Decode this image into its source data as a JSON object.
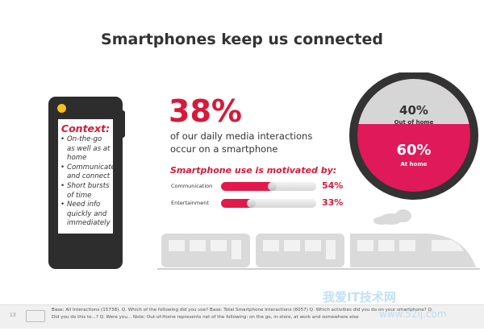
{
  "title": "Smartphones keep us connected",
  "context": {
    "title": "Context:",
    "items": [
      "On-the-go as well as at home",
      "Communicate and connect",
      "Short bursts of time",
      "Need info quickly and immediately"
    ]
  },
  "headline": {
    "value": "38%",
    "line1": "of our daily media interactions",
    "line2": "occur on a smartphone"
  },
  "motivation": {
    "title": "Smartphone use is motivated by:",
    "bars": [
      {
        "label": "Communication",
        "value": "54%",
        "percent": 54
      },
      {
        "label": "Entertainment",
        "value": "33%",
        "percent": 33
      }
    ]
  },
  "location": {
    "out": {
      "value": "40%",
      "label": "Out of home",
      "percent": 40
    },
    "home": {
      "value": "60%",
      "label": "At home",
      "percent": 60
    }
  },
  "footer": {
    "page": "13",
    "note": "Base: All Interactions (15738). Q. Which of the following did you use? Base: Total Smartphone Interactions (6057) Q. Which activities did you do on your smartphone? Q. Did you do this to...? Q. Were you... Note: Out-of-Home represents net of the following: on the go, in-store, at work and somewhere else"
  },
  "watermark": {
    "line1": "我爱IT技术网",
    "line2": "www.52ij.com"
  },
  "colors": {
    "accent": "#d7193a",
    "phone": "#2d2d2d",
    "camera": "#f5c21b",
    "train": "#d9d9d9"
  }
}
